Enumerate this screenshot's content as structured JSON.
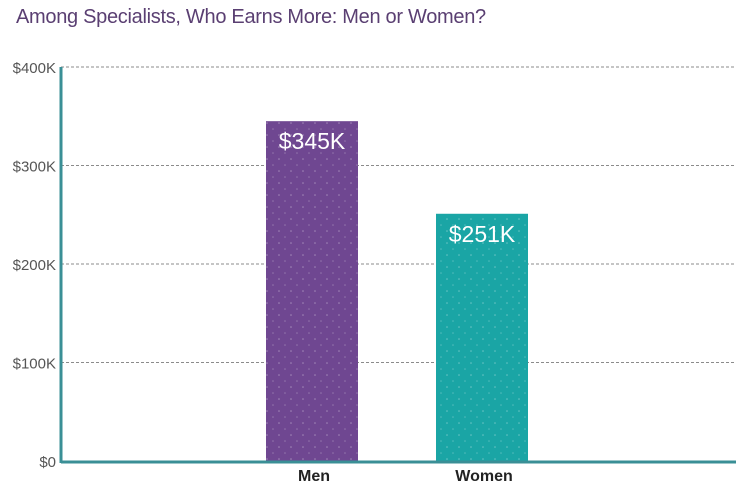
{
  "chart_data": {
    "type": "bar",
    "title": "Among Specialists, Who Earns More: Men or Women?",
    "categories": [
      "Men",
      "Women"
    ],
    "values": [
      345,
      251
    ],
    "data_labels": [
      "$345K",
      "$251K"
    ],
    "colors": [
      "#6f4791",
      "#1aa5a5"
    ],
    "ylim": [
      0,
      400
    ],
    "yticks": [
      0,
      100,
      200,
      300,
      400
    ],
    "ytick_labels": [
      "$0",
      "$100K",
      "$200K",
      "$300K",
      "$400K"
    ],
    "xlabel": "",
    "ylabel": "",
    "grid": true,
    "axis_color": "#3a8f96"
  }
}
